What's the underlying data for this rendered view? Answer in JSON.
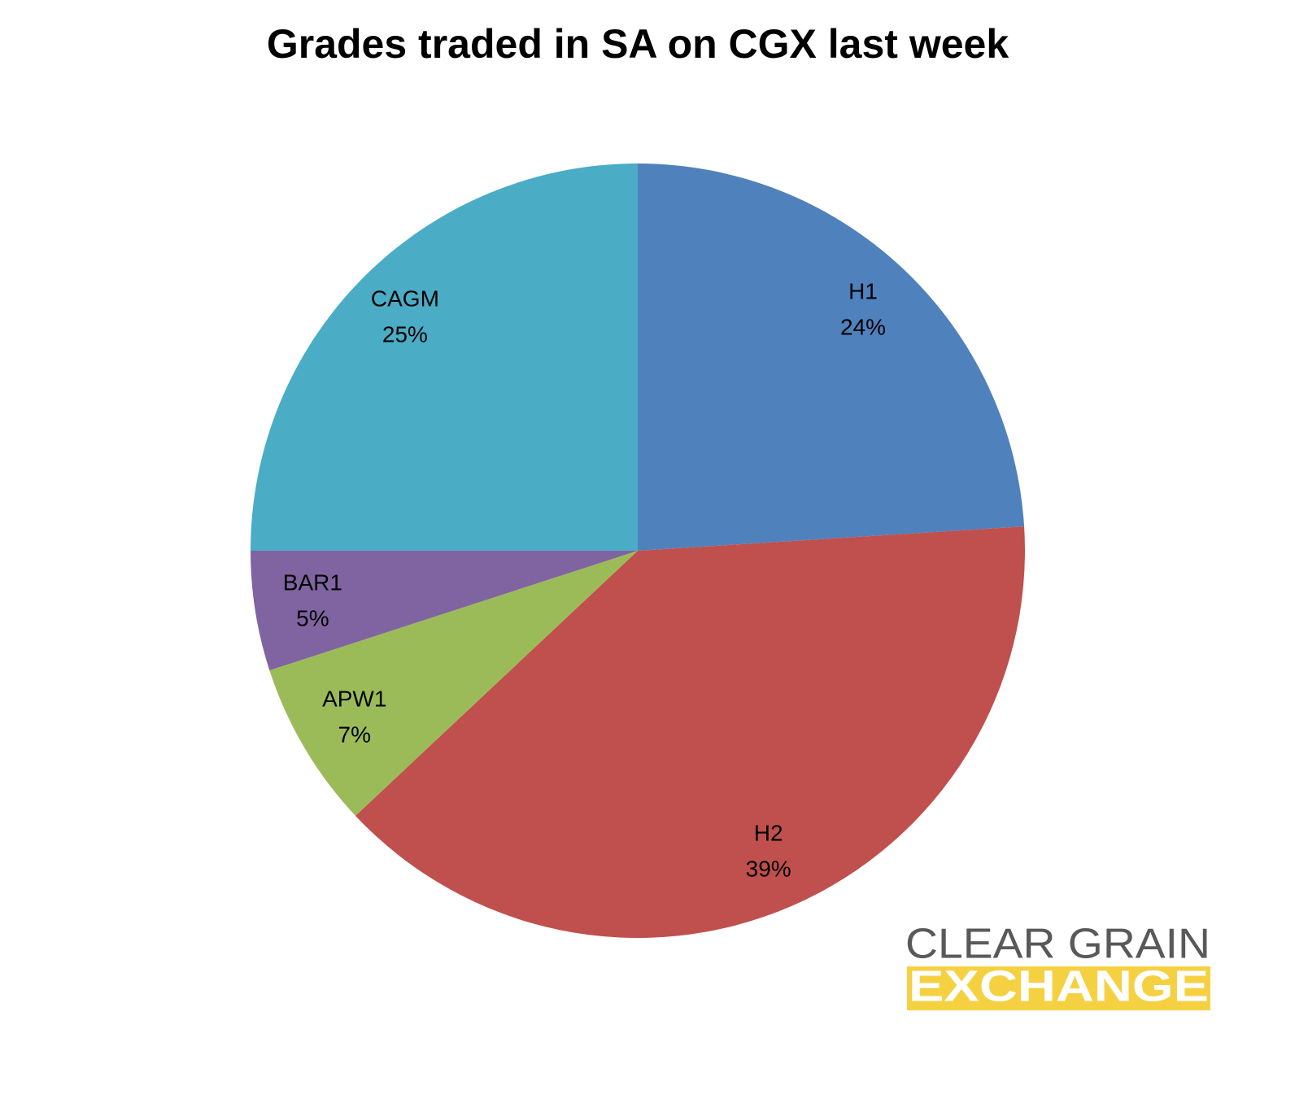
{
  "chart_data": {
    "type": "pie",
    "title": "Grades traded in SA on CGX last week",
    "categories": [
      "H1",
      "H2",
      "APW1",
      "BAR1",
      "CAGM"
    ],
    "values": [
      24,
      39,
      7,
      5,
      25
    ],
    "value_labels": [
      "24%",
      "39%",
      "7%",
      "5%",
      "25%"
    ],
    "colors": [
      "#4f81bd",
      "#c0504d",
      "#9bbb59",
      "#8064a2",
      "#4bacc6"
    ]
  },
  "logo": {
    "line1": "CLEAR GRAIN",
    "line2": "EXCHANGE"
  }
}
